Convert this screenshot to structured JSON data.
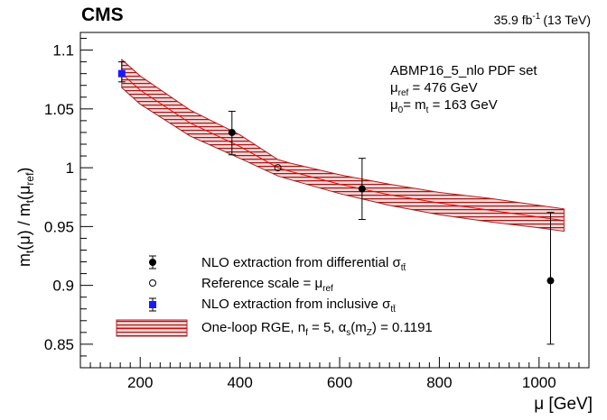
{
  "chart_data": {
    "type": "scatter",
    "experiment_label": "CMS",
    "lumi_label": "35.9 fb",
    "lumi_exponent": "-1",
    "lumi_energy": "(13 TeV)",
    "xlabel": "μ [GeV]",
    "ylabel": {
      "m1": "m",
      "m1_sub": "t",
      "arg1": "(μ) / m",
      "m2_sub": "t",
      "arg2_open": "(μ",
      "arg2_sub": "ref",
      "arg2_close": ")"
    },
    "xlim": [
      80,
      1100
    ],
    "ylim": [
      0.83,
      1.115
    ],
    "x_ticks": [
      200,
      400,
      600,
      800,
      1000
    ],
    "x_tick_labels": [
      "200",
      "400",
      "600",
      "800",
      "1000"
    ],
    "y_ticks": [
      0.85,
      0.9,
      0.95,
      1.0,
      1.05,
      1.1
    ],
    "y_tick_labels": [
      "0.85",
      "0.9",
      "0.95",
      "1",
      "1.05",
      "1.1"
    ],
    "grid": false,
    "annotations": {
      "pdf_set": "ABMP16_5_nlo PDF set",
      "mu_ref_sym": "μ",
      "mu_ref_sub": "ref",
      "mu_ref_val": " = 476 GeV",
      "mu0_sym": "μ",
      "mu0_sub": "0",
      "mu0_mid": "= m",
      "mu0_msub": "t",
      "mu0_val": " = 163 GeV"
    },
    "series": [
      {
        "key": "differential",
        "marker": "filled-circle",
        "color": "#000000",
        "points": [
          {
            "x": 384,
            "y": 1.03,
            "yerr_low": 0.019,
            "yerr_high": 0.018
          },
          {
            "x": 645,
            "y": 0.982,
            "yerr_low": 0.026,
            "yerr_high": 0.026
          },
          {
            "x": 1023,
            "y": 0.904,
            "yerr_low": 0.054,
            "yerr_high": 0.058
          }
        ]
      },
      {
        "key": "reference",
        "marker": "open-circle",
        "color": "#000000",
        "points": [
          {
            "x": 476,
            "y": 1.0
          }
        ]
      },
      {
        "key": "inclusive",
        "marker": "filled-square",
        "color": "#1a1aff",
        "points": [
          {
            "x": 163,
            "y": 1.08,
            "yerr_low": 0.007,
            "yerr_high": 0.01
          }
        ]
      }
    ],
    "band": {
      "key": "rge",
      "fill_color": "#b31b1b",
      "line_color": "#ff0000",
      "x": [
        163,
        200,
        300,
        400,
        476,
        500,
        600,
        700,
        800,
        900,
        1000,
        1050
      ],
      "y_center": [
        1.08,
        1.066,
        1.038,
        1.018,
        1.0,
        0.997,
        0.986,
        0.977,
        0.97,
        0.964,
        0.958,
        0.955
      ],
      "y_low": [
        1.068,
        1.054,
        1.027,
        1.008,
        0.993,
        0.99,
        0.978,
        0.968,
        0.96,
        0.954,
        0.949,
        0.946
      ],
      "y_high": [
        1.092,
        1.078,
        1.049,
        1.028,
        1.007,
        1.004,
        0.994,
        0.986,
        0.979,
        0.974,
        0.968,
        0.965
      ]
    },
    "legend": {
      "placement": "bottom-left",
      "entries": [
        {
          "key": "differential",
          "text": "NLO extraction from differential σ",
          "sub": "tt̄"
        },
        {
          "key": "reference",
          "text": "Reference scale = μ",
          "sub": "ref"
        },
        {
          "key": "inclusive",
          "text": "NLO extraction from inclusive σ",
          "sub": "tt̄"
        },
        {
          "key": "rge",
          "text": "One-loop RGE, n",
          "sub1": "f",
          "mid": " = 5, α",
          "sub2": "s",
          "paren": "(m",
          "sub3": "Z",
          "tail": ") = 0.1191"
        }
      ]
    }
  }
}
